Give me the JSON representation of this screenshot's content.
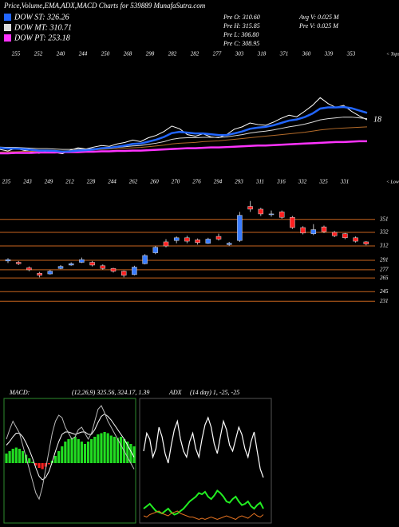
{
  "header": {
    "title": "Price,Volume,EMA,ADX,MACD Charts for 539889 MunafaSutra.com",
    "prices": [
      "Pre  O: 310.60",
      "Pre  H: 315.85",
      "Pre  L: 306.80",
      "Pre  C: 308.95"
    ],
    "volumes": [
      "Avg  V: 0.025 M",
      "Pre  V: 0.025 M"
    ]
  },
  "chart_data": [
    {
      "type": "line",
      "ylim": [
        185,
        493
      ],
      "tops_label": "< Tops",
      "lows_label": "< Lows",
      "annotation": "18",
      "tops": [
        "255",
        "252",
        "240",
        "244",
        "250",
        "268",
        "298",
        "282",
        "282",
        "277",
        "303",
        "318",
        "371",
        "360",
        "339",
        "353"
      ],
      "lows": [
        "235",
        "243",
        "249",
        "212",
        "228",
        "244",
        "262",
        "260",
        "270",
        "276",
        "294",
        "293",
        "311",
        "316",
        "332",
        "325",
        "331"
      ],
      "series": [
        {
          "color": "#ffffff",
          "values": [
            232,
            228,
            235,
            230,
            226,
            222,
            228,
            224,
            221,
            230,
            236,
            233,
            238,
            242,
            240,
            246,
            250,
            256,
            252,
            262,
            268,
            278,
            292,
            285,
            270,
            266,
            272,
            264,
            262,
            270,
            284,
            290,
            300,
            296,
            294,
            302,
            312,
            320,
            316,
            330,
            345,
            365,
            350,
            340,
            345,
            330,
            318,
            308
          ]
        },
        {
          "color": "#b36b2a",
          "values": [
            225,
            226,
            226,
            227,
            227,
            227,
            228,
            228,
            228,
            229,
            230,
            230,
            231,
            232,
            233,
            234,
            235,
            236,
            237,
            239,
            241,
            243,
            246,
            248,
            249,
            250,
            252,
            253,
            254,
            256,
            258,
            260,
            262,
            264,
            266,
            268,
            270,
            272,
            274,
            276,
            279,
            282,
            284,
            286,
            287,
            288,
            289,
            290
          ]
        },
        {
          "name": "DOW PT: 253.18",
          "color": "#ff33ff",
          "values": [
            222,
            222,
            223,
            223,
            223,
            224,
            224,
            224,
            225,
            225,
            225,
            226,
            226,
            227,
            227,
            228,
            228,
            229,
            229,
            230,
            231,
            232,
            233,
            234,
            235,
            235,
            236,
            237,
            237,
            238,
            239,
            240,
            241,
            242,
            242,
            243,
            244,
            245,
            246,
            247,
            248,
            249,
            250,
            251,
            251,
            252,
            253,
            253
          ]
        },
        {
          "name": "DOW MT: 310.71",
          "color": "#dddddd",
          "values": [
            238,
            237,
            237,
            236,
            235,
            234,
            234,
            233,
            232,
            232,
            233,
            233,
            234,
            235,
            236,
            237,
            239,
            241,
            242,
            245,
            248,
            252,
            258,
            261,
            262,
            262,
            263,
            263,
            263,
            264,
            267,
            270,
            274,
            277,
            279,
            282,
            286,
            290,
            293,
            297,
            302,
            308,
            311,
            313,
            315,
            315,
            313,
            311
          ]
        },
        {
          "name": "DOW ST: 326.26",
          "color": "#2266ff",
          "values": [
            236,
            234,
            234,
            233,
            231,
            229,
            229,
            228,
            226,
            227,
            229,
            230,
            232,
            235,
            236,
            239,
            242,
            246,
            247,
            252,
            257,
            264,
            274,
            277,
            275,
            273,
            273,
            271,
            269,
            269,
            273,
            278,
            285,
            288,
            290,
            294,
            300,
            306,
            309,
            315,
            324,
            337,
            340,
            340,
            341,
            338,
            332,
            326
          ]
        }
      ]
    },
    {
      "type": "candlestick",
      "ylim": [
        216,
        380
      ],
      "levels": [
        351,
        332,
        312,
        291,
        277,
        265,
        245,
        231
      ],
      "up_color": "#3a7cff",
      "down_color": "#ff2020",
      "candles": [
        [
          290,
          294,
          287,
          292
        ],
        [
          288,
          290,
          284,
          286
        ],
        [
          280,
          282,
          275,
          277
        ],
        [
          272,
          274,
          266,
          269
        ],
        [
          271,
          277,
          270,
          275
        ],
        [
          279,
          284,
          278,
          282
        ],
        [
          284,
          288,
          283,
          286
        ],
        [
          288,
          295,
          287,
          292
        ],
        [
          288,
          290,
          282,
          284
        ],
        [
          283,
          285,
          277,
          279
        ],
        [
          279,
          280,
          273,
          275
        ],
        [
          275,
          276,
          266,
          269
        ],
        [
          270,
          283,
          269,
          281
        ],
        [
          286,
          300,
          285,
          298
        ],
        [
          302,
          312,
          300,
          310
        ],
        [
          318,
          322,
          310,
          312
        ],
        [
          320,
          326,
          316,
          324
        ],
        [
          324,
          327,
          316,
          319
        ],
        [
          321,
          323,
          314,
          317
        ],
        [
          316,
          324,
          315,
          322
        ],
        [
          326,
          330,
          320,
          322
        ],
        [
          314,
          318,
          312,
          316
        ],
        [
          320,
          362,
          318,
          357
        ],
        [
          370,
          378,
          362,
          366
        ],
        [
          366,
          368,
          356,
          359
        ],
        [
          358,
          364,
          355,
          359
        ],
        [
          362,
          364,
          352,
          354
        ],
        [
          354,
          356,
          337,
          339
        ],
        [
          339,
          341,
          329,
          331
        ],
        [
          330,
          344,
          328,
          336
        ],
        [
          340,
          342,
          331,
          333
        ],
        [
          332,
          334,
          325,
          327
        ],
        [
          330,
          331,
          322,
          324
        ],
        [
          324,
          326,
          317,
          319
        ],
        [
          318,
          319,
          313,
          315
        ]
      ]
    },
    {
      "type": "macd",
      "title": "MACD:",
      "params": "(12,26,9) 325.56, 324.17, 1.39",
      "ylim": [
        -50,
        50
      ],
      "histogram": [
        8,
        10,
        12,
        13,
        12,
        10,
        7,
        4,
        1,
        -2,
        -4,
        -5,
        -3,
        -1,
        2,
        6,
        10,
        14,
        18,
        20,
        21,
        22,
        20,
        18,
        16,
        18,
        20,
        22,
        24,
        25,
        26,
        25,
        23,
        22,
        21,
        22,
        20,
        18,
        16,
        14
      ],
      "macd": [
        20,
        28,
        35,
        30,
        25,
        15,
        5,
        -5,
        -15,
        -25,
        -30,
        -20,
        -5,
        10,
        25,
        35,
        40,
        38,
        30,
        25,
        20,
        22,
        28,
        30,
        25,
        20,
        25,
        35,
        45,
        48,
        42,
        35,
        30,
        25,
        20,
        15,
        10,
        5,
        0,
        -5
      ],
      "signal": [
        15,
        18,
        22,
        25,
        25,
        22,
        17,
        11,
        4,
        -4,
        -11,
        -14,
        -12,
        -7,
        1,
        10,
        18,
        24,
        26,
        26,
        25,
        24,
        25,
        26,
        26,
        24,
        24,
        28,
        34,
        39,
        41,
        39,
        36,
        32,
        28,
        24,
        20,
        15,
        10,
        5
      ]
    },
    {
      "type": "adx",
      "title": "ADX",
      "params": "(14 day) 1, -25, -25",
      "ylim": [
        0,
        100
      ],
      "di_line": [
        60,
        75,
        70,
        55,
        62,
        80,
        72,
        58,
        50,
        65,
        78,
        85,
        70,
        60,
        55,
        68,
        75,
        62,
        55,
        70,
        82,
        88,
        80,
        66,
        58,
        72,
        85,
        78,
        65,
        60,
        70,
        80,
        74,
        62,
        55,
        68,
        76,
        60,
        45,
        38
      ],
      "plus_line": [
        12,
        14,
        16,
        13,
        10,
        9,
        8,
        10,
        12,
        9,
        7,
        8,
        10,
        12,
        15,
        18,
        20,
        22,
        25,
        24,
        26,
        22,
        20,
        23,
        27,
        25,
        22,
        18,
        17,
        20,
        22,
        18,
        15,
        16,
        18,
        14,
        12,
        15,
        17,
        12
      ],
      "minus_line": [
        6,
        5,
        7,
        8,
        9,
        10,
        8,
        7,
        6,
        8,
        9,
        10,
        8,
        7,
        6,
        5,
        5,
        4,
        3,
        4,
        3,
        4,
        5,
        4,
        3,
        4,
        5,
        6,
        5,
        4,
        3,
        5,
        6,
        5,
        4,
        6,
        8,
        6,
        5,
        7
      ]
    }
  ]
}
